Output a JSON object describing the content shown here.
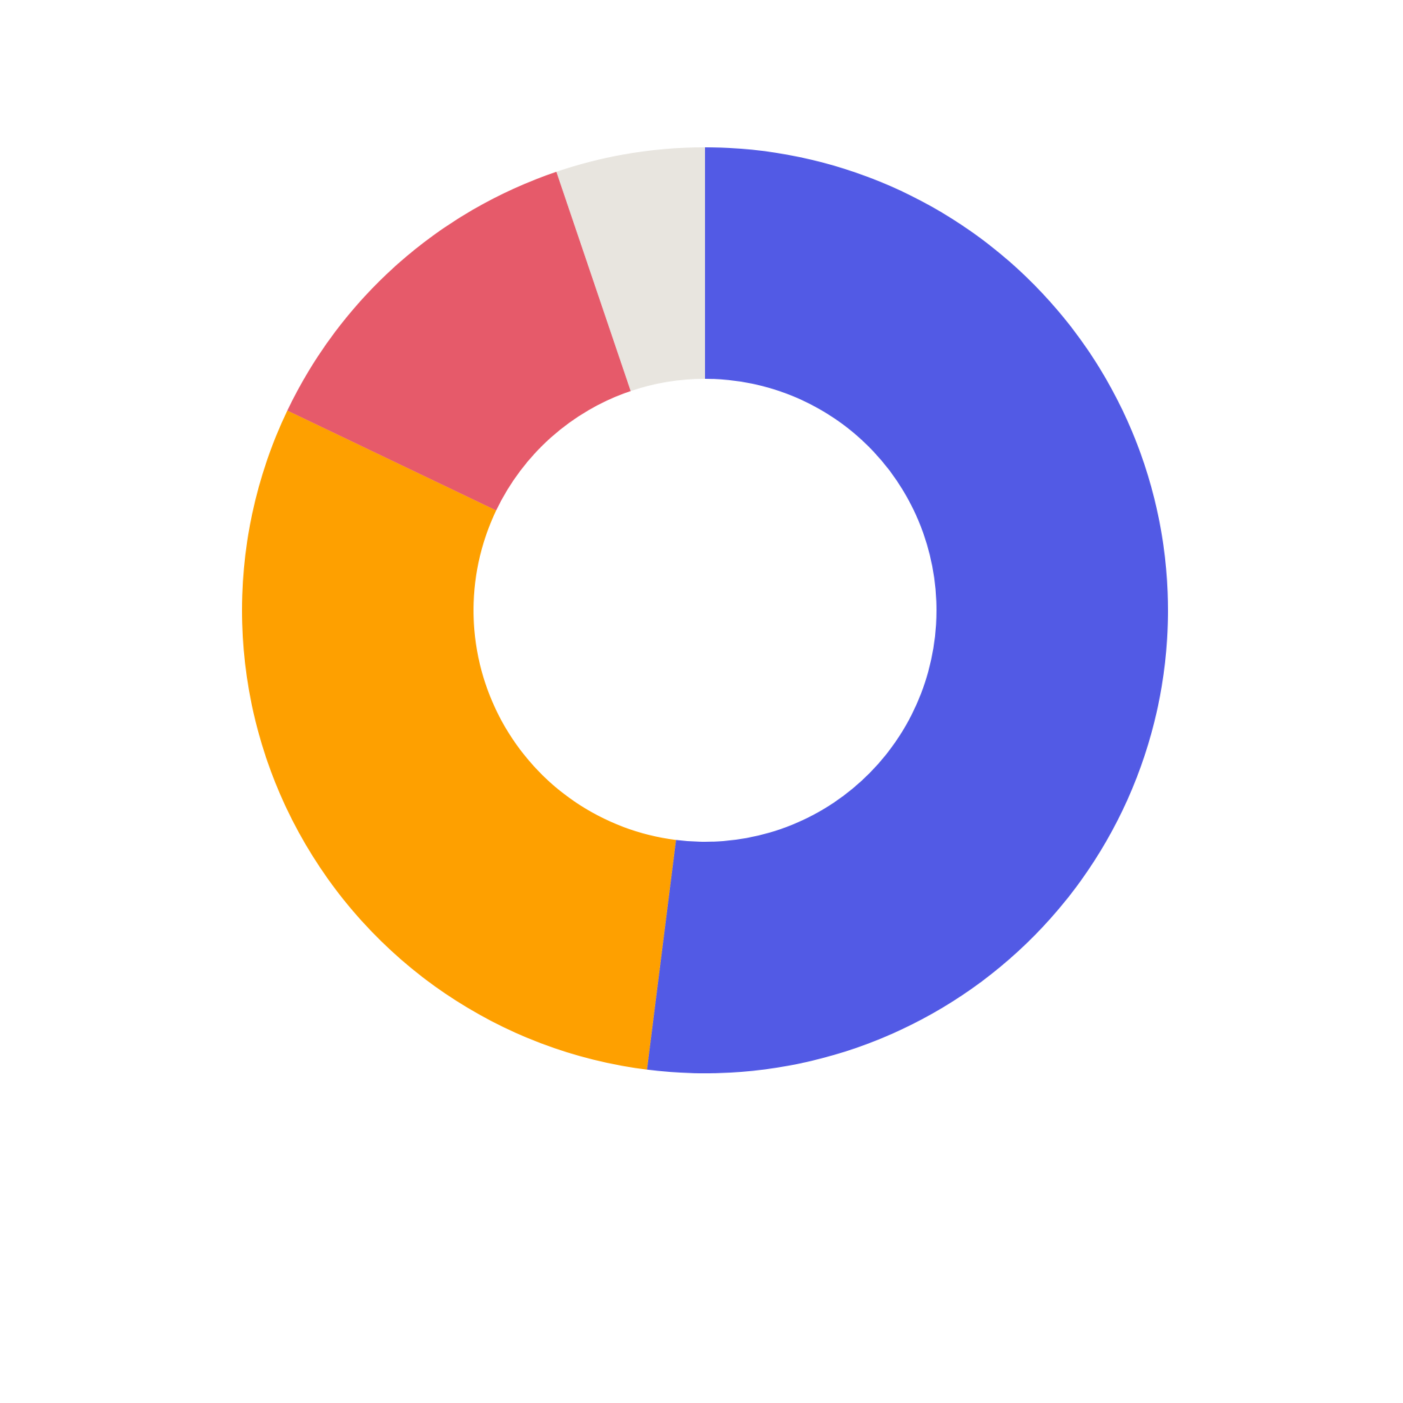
{
  "chart_data": {
    "type": "pie",
    "variant": "donut",
    "title": "",
    "start_angle": "12 o'clock",
    "direction": "clockwise",
    "series": [
      {
        "value": 52.0,
        "color": "#525ae5"
      },
      {
        "value": 30.1,
        "color": "#fea000"
      },
      {
        "value": 12.7,
        "color": "#e65a6a"
      },
      {
        "value": 5.2,
        "color": "#e8e5df"
      }
    ]
  }
}
